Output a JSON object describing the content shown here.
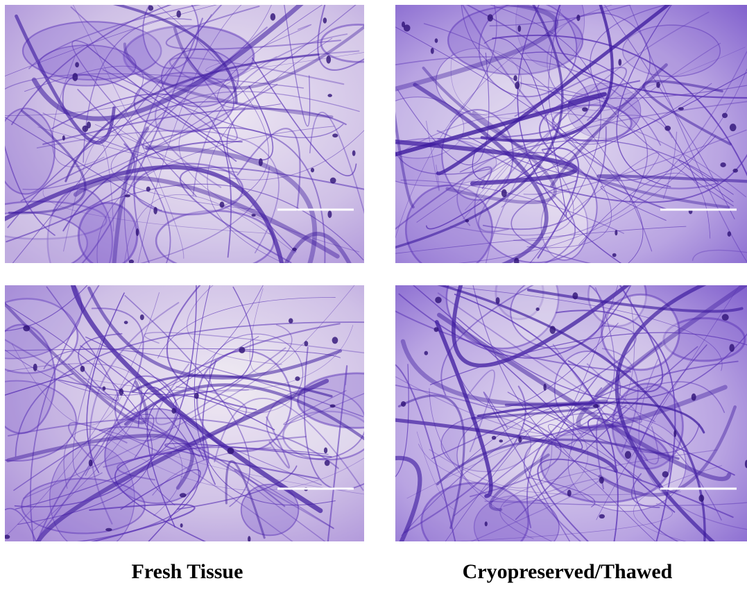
{
  "captions": [
    "Fresh Tissue",
    "Cryopreserved/Thawed"
  ]
}
